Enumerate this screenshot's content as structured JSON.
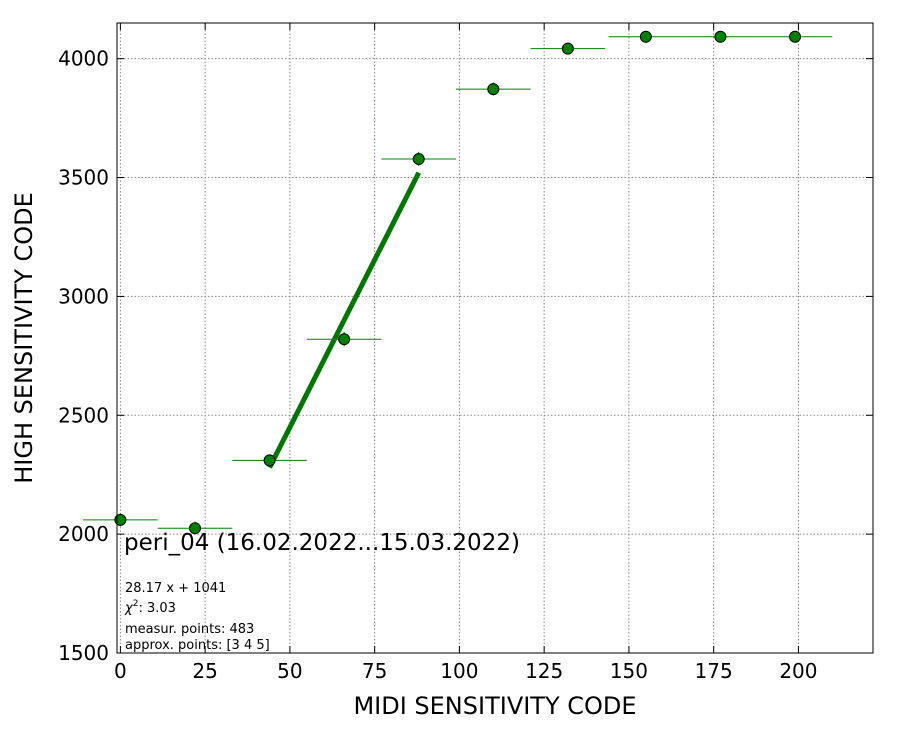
{
  "chart_data": {
    "type": "scatter",
    "xlabel": "MIDI SENSITIVITY CODE",
    "ylabel": "HIGH SENSITIVITY CODE",
    "xlim": [
      -1,
      222
    ],
    "ylim": [
      1500,
      4150
    ],
    "x_ticks": [
      0,
      25,
      50,
      75,
      100,
      125,
      150,
      175,
      200
    ],
    "y_ticks": [
      1500,
      2000,
      2500,
      3000,
      3500,
      4000
    ],
    "grid": true,
    "point_color": "#008000",
    "line_color": "#007500",
    "points": [
      {
        "x": 0,
        "y": 2060,
        "xerr": 11,
        "yerr": 55
      },
      {
        "x": 22,
        "y": 2025,
        "xerr": 11,
        "yerr": 55
      },
      {
        "x": 44,
        "y": 2310,
        "xerr": 11,
        "yerr": 40
      },
      {
        "x": 66,
        "y": 2820,
        "xerr": 11,
        "yerr": 60
      },
      {
        "x": 88,
        "y": 3578,
        "xerr": 11,
        "yerr": 60
      },
      {
        "x": 110,
        "y": 3872,
        "xerr": 11,
        "yerr": 55
      },
      {
        "x": 132,
        "y": 4042,
        "xerr": 11,
        "yerr": 0
      },
      {
        "x": 155,
        "y": 4092,
        "xerr": 11,
        "yerr": 0
      },
      {
        "x": 177,
        "y": 4092,
        "xerr": 11,
        "yerr": 0
      },
      {
        "x": 199,
        "y": 4092,
        "xerr": 11,
        "yerr": 0
      }
    ],
    "fit": {
      "slope": 28.17,
      "intercept": 1041,
      "x_range": [
        44,
        88
      ]
    },
    "annotations": {
      "title": "peri_04 (16.02.2022...15.03.2022)",
      "equation": "28.17 x + 1041",
      "chi2_label": "χ",
      "chi2_sup": "2",
      "chi2_value": ": 3.03",
      "measur": "measur. points: 483",
      "approx": "approx. points: [3 4 5]"
    }
  }
}
